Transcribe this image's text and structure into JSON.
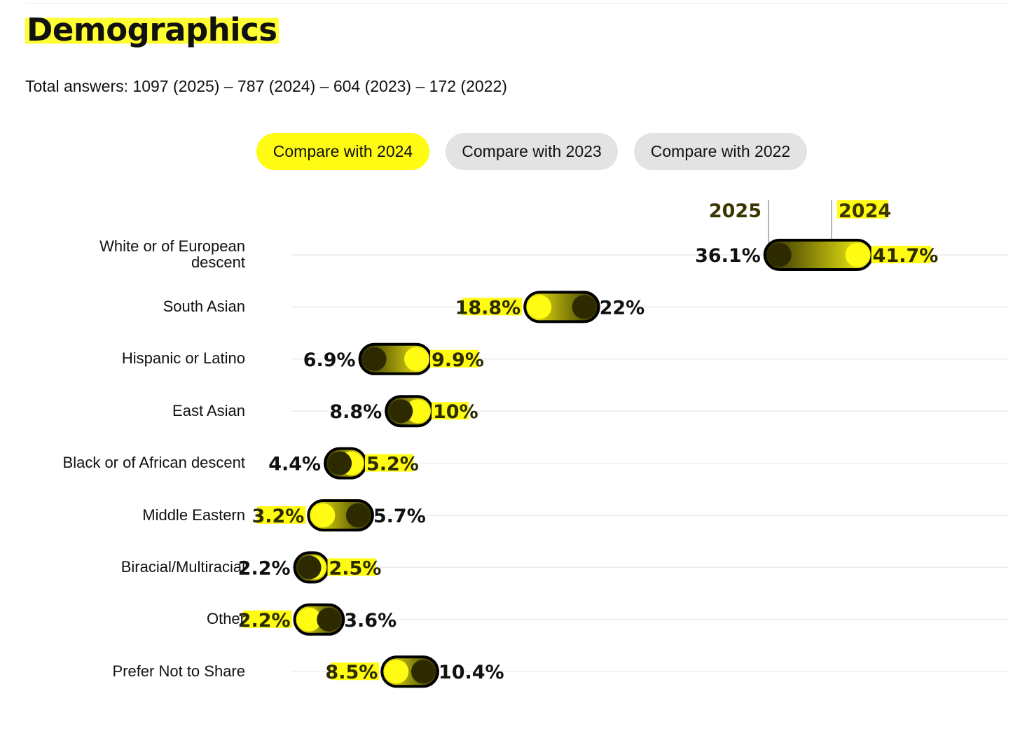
{
  "title": "Demographics",
  "subtitle": "Total answers: 1097 (2025) – 787 (2024) – 604 (2023) – 172 (2022)",
  "tabs": [
    {
      "label": "Compare with 2024",
      "active": true
    },
    {
      "label": "Compare with 2023",
      "active": false
    },
    {
      "label": "Compare with 2022",
      "active": false
    }
  ],
  "colors": {
    "accent": "#fffb13",
    "dark": "#2d2a00",
    "tab_inactive": "#e3e3e3",
    "gridline": "#ececec"
  },
  "chart_data": {
    "type": "dumbbell",
    "legend": {
      "left": "2025",
      "right": "2024"
    },
    "series": [
      {
        "name": "2025",
        "color": "#2d2a00"
      },
      {
        "name": "2024",
        "color": "#fffb13"
      }
    ],
    "categories": [
      {
        "label": "White or of European descent",
        "label_lines": [
          "White or of European",
          "descent"
        ],
        "v2025": 36.1,
        "v2024": 41.7,
        "t2025": "36.1%",
        "t2024": "41.7%"
      },
      {
        "label": "South Asian",
        "v2025": 22,
        "v2024": 18.8,
        "t2025": "22%",
        "t2024": "18.8%"
      },
      {
        "label": "Hispanic or Latino",
        "v2025": 6.9,
        "v2024": 9.9,
        "t2025": "6.9%",
        "t2024": "9.9%"
      },
      {
        "label": "East Asian",
        "v2025": 8.8,
        "v2024": 10,
        "t2025": "8.8%",
        "t2024": "10%"
      },
      {
        "label": "Black or of African descent",
        "v2025": 4.4,
        "v2024": 5.2,
        "t2025": "4.4%",
        "t2024": "5.2%"
      },
      {
        "label": "Middle Eastern",
        "v2025": 5.7,
        "v2024": 3.2,
        "t2025": "5.7%",
        "t2024": "3.2%"
      },
      {
        "label": "Biracial/Multiracial",
        "v2025": 2.2,
        "v2024": 2.5,
        "t2025": "2.2%",
        "t2024": "2.5%"
      },
      {
        "label": "Other",
        "v2025": 3.6,
        "v2024": 2.2,
        "t2025": "3.6%",
        "t2024": "2.2%"
      },
      {
        "label": "Prefer Not to Share",
        "v2025": 10.4,
        "v2024": 8.5,
        "t2025": "10.4%",
        "t2024": "8.5%"
      }
    ]
  }
}
